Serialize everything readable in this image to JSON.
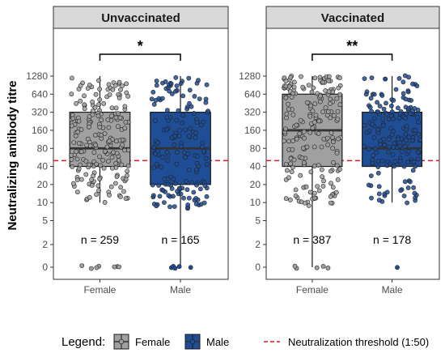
{
  "chart_data": {
    "type": "boxplot",
    "ylabel": "Neutralizing antibody titre",
    "y_scale": "log2 (0 shown at bottom)",
    "y_ticks": [
      "0",
      "2",
      "5",
      "10",
      "20",
      "40",
      "80",
      "160",
      "320",
      "640",
      "1280"
    ],
    "threshold": {
      "value": 50,
      "label": "Neutralization threshold (1:50)",
      "color": "#e41a1c"
    },
    "legend": {
      "title": "Legend:",
      "placement": "bottom",
      "items": [
        {
          "label": "Female",
          "color": "#a0a0a0"
        },
        {
          "label": "Male",
          "color": "#1f4e96"
        }
      ]
    },
    "panels": [
      {
        "title": "Unvaccinated",
        "significance": "*",
        "groups": [
          {
            "label": "Female",
            "n_label": "n = 259",
            "n": 259,
            "min": 10,
            "q1": 40,
            "median": 80,
            "q3": 320,
            "max": 1280,
            "low_outliers": 7,
            "color": "#a0a0a0"
          },
          {
            "label": "Male",
            "n_label": "n = 165",
            "n": 165,
            "min": 0,
            "q1": 20,
            "median": 80,
            "q3": 320,
            "max": 1280,
            "low_outliers": 0,
            "color": "#1f4e96"
          }
        ]
      },
      {
        "title": "Vaccinated",
        "significance": "**",
        "groups": [
          {
            "label": "Female",
            "n_label": "n = 387",
            "n": 387,
            "min": 0,
            "q1": 40,
            "median": 160,
            "q3": 640,
            "max": 1280,
            "low_outliers": 0,
            "color": "#a0a0a0"
          },
          {
            "label": "Male",
            "n_label": "n = 178",
            "n": 178,
            "min": 10,
            "q1": 40,
            "median": 80,
            "q3": 320,
            "max": 1280,
            "low_outliers": 1,
            "color": "#1f4e96"
          }
        ]
      }
    ]
  }
}
